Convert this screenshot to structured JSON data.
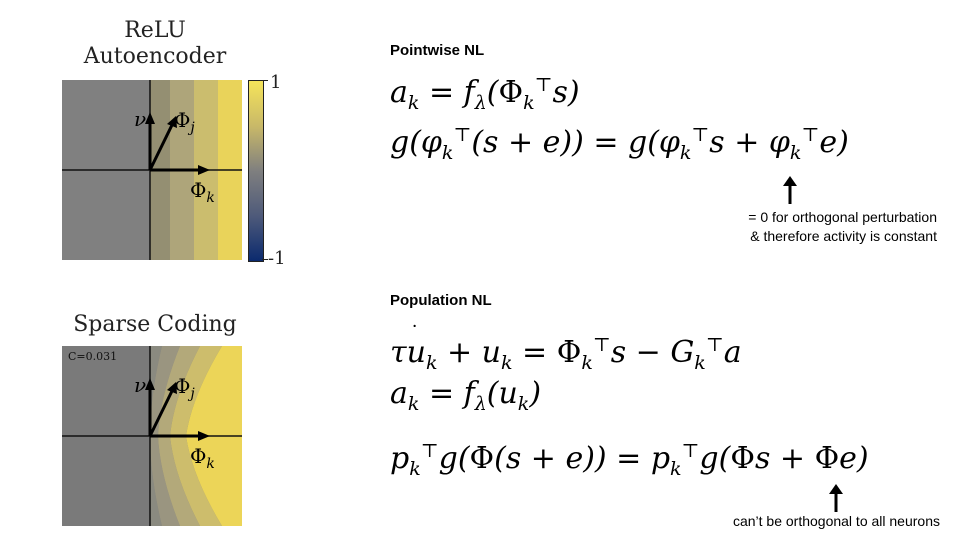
{
  "left_panels": {
    "relu": {
      "title_line1": "ReLU",
      "title_line2": "Autoencoder",
      "label_nu": "ν",
      "label_phi_j": "Φ",
      "label_phi_j_sub": "j",
      "label_phi_k": "Φ",
      "label_phi_k_sub": "k",
      "colorbar_max": "1",
      "colorbar_min": "-1"
    },
    "sparse": {
      "title": "Sparse Coding",
      "c_label": "C=0.031",
      "label_nu": "ν",
      "label_phi_j": "Φ",
      "label_phi_j_sub": "j",
      "label_phi_k": "Φ",
      "label_phi_k_sub": "k"
    }
  },
  "pointwise": {
    "title": "Pointwise NL",
    "note_line1": "= 0 for orthogonal perturbation",
    "note_line2": "& therefore activity is constant"
  },
  "population": {
    "title": "Population NL",
    "note": "can’t be orthogonal to all neurons"
  },
  "colors": {
    "cb_top": "#f5e45a",
    "cb_mid": "#7f7f7f",
    "cb_bottom": "#0b2a6e",
    "panel_gray": "#808080"
  }
}
